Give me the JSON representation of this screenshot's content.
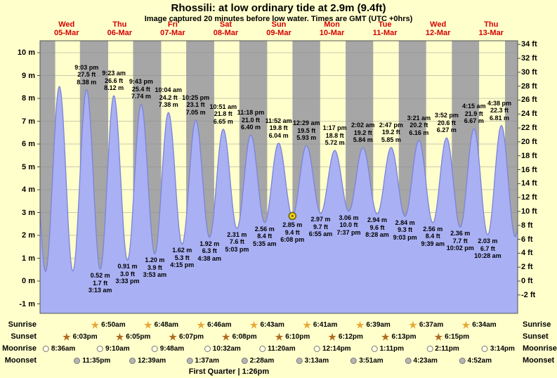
{
  "header": {
    "title": "Rhossili: at low  ordinary tide at 2.9m (9.4ft)",
    "subtitle": "Image captured 20 minutes before low water. Times are GMT (UTC +0hrs)"
  },
  "days": [
    {
      "dow": "Wed",
      "date": "05-Mar"
    },
    {
      "dow": "Thu",
      "date": "06-Mar"
    },
    {
      "dow": "Fri",
      "date": "07-Mar"
    },
    {
      "dow": "Sat",
      "date": "08-Mar"
    },
    {
      "dow": "Sun",
      "date": "09-Mar"
    },
    {
      "dow": "Mon",
      "date": "10-Mar"
    },
    {
      "dow": "Tue",
      "date": "11-Mar"
    },
    {
      "dow": "Wed",
      "date": "12-Mar"
    },
    {
      "dow": "Thu",
      "date": "13-Mar"
    }
  ],
  "y_axis": {
    "left_labels": [
      "10 m",
      "9 m",
      "8 m",
      "7 m",
      "6 m",
      "5 m",
      "4 m",
      "3 m",
      "2 m",
      "1 m",
      "0 m",
      "-1 m"
    ],
    "right_labels": [
      "34 ft",
      "32 ft",
      "30 ft",
      "28 ft",
      "26 ft",
      "24 ft",
      "22 ft",
      "20 ft",
      "18 ft",
      "16 ft",
      "14 ft",
      "12 ft",
      "10 ft",
      "8 ft",
      "6 ft",
      "4 ft",
      "2 ft",
      "0 ft",
      "-2 ft"
    ]
  },
  "chart_data": {
    "type": "area",
    "title": "Rhossili tide height curve, 05-Mar to 13-Mar",
    "x_unit": "time (GMT)",
    "y_unit_left": "m",
    "y_unit_right": "ft",
    "y_range_m": [
      -1,
      10
    ],
    "events": [
      {
        "day": 0,
        "time": "2:30 am",
        "m": 0.42,
        "kind": "low",
        "labeled": false
      },
      {
        "day": 0,
        "time": "8:45 am",
        "m": 8.52,
        "kind": "high",
        "labeled": false
      },
      {
        "day": 0,
        "time": "2:50 pm",
        "m": 0.44,
        "kind": "low",
        "labeled": false
      },
      {
        "day": 0,
        "time": "9:03 pm",
        "m": 8.38,
        "m_text": "8.38 m",
        "ft_text": "27.5 ft",
        "kind": "high",
        "labeled": true
      },
      {
        "day": 1,
        "time": "3:13 am",
        "m": 0.52,
        "m_text": "0.52 m",
        "ft_text": "1.7 ft",
        "kind": "low",
        "labeled": true
      },
      {
        "day": 1,
        "time": "9:23 am",
        "m": 8.12,
        "m_text": "8.12 m",
        "ft_text": "26.6 ft",
        "kind": "high",
        "labeled": true
      },
      {
        "day": 1,
        "time": "3:33 pm",
        "m": 0.91,
        "m_text": "0.91 m",
        "ft_text": "3.0 ft",
        "kind": "low",
        "labeled": true
      },
      {
        "day": 1,
        "time": "9:43 pm",
        "m": 7.74,
        "m_text": "7.74 m",
        "ft_text": "25.4 ft",
        "kind": "high",
        "labeled": true
      },
      {
        "day": 2,
        "time": "3:53 am",
        "m": 1.2,
        "m_text": "1.20 m",
        "ft_text": "3.9 ft",
        "kind": "low",
        "labeled": true
      },
      {
        "day": 2,
        "time": "10:04 am",
        "m": 7.38,
        "m_text": "7.38 m",
        "ft_text": "24.2 ft",
        "kind": "high",
        "labeled": true
      },
      {
        "day": 2,
        "time": "4:15 pm",
        "m": 1.62,
        "m_text": "1.62 m",
        "ft_text": "5.3 ft",
        "kind": "low",
        "labeled": true
      },
      {
        "day": 2,
        "time": "10:25 pm",
        "m": 7.05,
        "m_text": "7.05 m",
        "ft_text": "23.1 ft",
        "kind": "high",
        "labeled": true
      },
      {
        "day": 3,
        "time": "4:38 am",
        "m": 1.92,
        "m_text": "1.92 m",
        "ft_text": "6.3 ft",
        "kind": "low",
        "labeled": true
      },
      {
        "day": 3,
        "time": "10:51 am",
        "m": 6.65,
        "m_text": "6.65 m",
        "ft_text": "21.8 ft",
        "kind": "high",
        "labeled": true
      },
      {
        "day": 3,
        "time": "5:03 pm",
        "m": 2.31,
        "m_text": "2.31 m",
        "ft_text": "7.6 ft",
        "kind": "low",
        "labeled": true
      },
      {
        "day": 3,
        "time": "11:18 pm",
        "m": 6.4,
        "m_text": "6.40 m",
        "ft_text": "21.0 ft",
        "kind": "high",
        "labeled": true
      },
      {
        "day": 4,
        "time": "5:35 am",
        "m": 2.56,
        "m_text": "2.56 m",
        "ft_text": "8.4 ft",
        "kind": "low",
        "labeled": true
      },
      {
        "day": 4,
        "time": "11:52 am",
        "m": 6.04,
        "m_text": "6.04 m",
        "ft_text": "19.8 ft",
        "kind": "high",
        "labeled": true
      },
      {
        "day": 4,
        "time": "6:08 pm",
        "m": 2.85,
        "m_text": "2.85 m",
        "ft_text": "9.4 ft",
        "kind": "low",
        "labeled": true,
        "marker": true
      },
      {
        "day": 5,
        "time": "12:29 am",
        "m": 5.93,
        "m_text": "5.93 m",
        "ft_text": "19.5 ft",
        "kind": "high",
        "labeled": true
      },
      {
        "day": 5,
        "time": "6:55 am",
        "m": 2.97,
        "m_text": "2.97 m",
        "ft_text": "9.7 ft",
        "kind": "low",
        "labeled": true
      },
      {
        "day": 5,
        "time": "1:17 pm",
        "m": 5.72,
        "m_text": "5.72 m",
        "ft_text": "18.8 ft",
        "kind": "high",
        "labeled": true
      },
      {
        "day": 5,
        "time": "7:37 pm",
        "m": 3.06,
        "m_text": "3.06 m",
        "ft_text": "10.0 ft",
        "kind": "low",
        "labeled": true
      },
      {
        "day": 6,
        "time": "2:02 am",
        "m": 5.84,
        "m_text": "5.84 m",
        "ft_text": "19.2 ft",
        "kind": "high",
        "labeled": true
      },
      {
        "day": 6,
        "time": "8:28 am",
        "m": 2.94,
        "m_text": "2.94 m",
        "ft_text": "9.6 ft",
        "kind": "low",
        "labeled": true
      },
      {
        "day": 6,
        "time": "2:47 pm",
        "m": 5.85,
        "m_text": "5.85 m",
        "ft_text": "19.2 ft",
        "kind": "high",
        "labeled": true
      },
      {
        "day": 6,
        "time": "9:03 pm",
        "m": 2.84,
        "m_text": "2.84 m",
        "ft_text": "9.3 ft",
        "kind": "low",
        "labeled": true
      },
      {
        "day": 7,
        "time": "3:21 am",
        "m": 6.16,
        "m_text": "6.16 m",
        "ft_text": "20.2 ft",
        "kind": "high",
        "labeled": true
      },
      {
        "day": 7,
        "time": "9:39 am",
        "m": 2.56,
        "m_text": "2.56 m",
        "ft_text": "8.4 ft",
        "kind": "low",
        "labeled": true
      },
      {
        "day": 7,
        "time": "3:52 pm",
        "m": 6.27,
        "m_text": "6.27 m",
        "ft_text": "20.6 ft",
        "kind": "high",
        "labeled": true
      },
      {
        "day": 7,
        "time": "10:02 pm",
        "m": 2.36,
        "m_text": "2.36 m",
        "ft_text": "7.7 ft",
        "kind": "low",
        "labeled": true
      },
      {
        "day": 8,
        "time": "4:15 am",
        "m": 6.67,
        "m_text": "6.67 m",
        "ft_text": "21.9 ft",
        "kind": "high",
        "labeled": true
      },
      {
        "day": 8,
        "time": "10:28 am",
        "m": 2.03,
        "m_text": "2.03 m",
        "ft_text": "6.7 ft",
        "kind": "low",
        "labeled": true
      },
      {
        "day": 8,
        "time": "4:38 pm",
        "m": 6.81,
        "m_text": "6.81 m",
        "ft_text": "22.3 ft",
        "kind": "high",
        "labeled": true
      },
      {
        "day": 8,
        "time": "10:55 pm",
        "m": 1.95,
        "kind": "low",
        "labeled": false
      }
    ]
  },
  "astro": {
    "row_labels": [
      "Sunrise",
      "Sunset",
      "Moonrise",
      "Moonset"
    ],
    "sunrise": [
      {
        "day": 1,
        "time": "6:50am"
      },
      {
        "day": 2,
        "time": "6:48am"
      },
      {
        "day": 3,
        "time": "6:46am"
      },
      {
        "day": 4,
        "time": "6:43am"
      },
      {
        "day": 5,
        "time": "6:41am"
      },
      {
        "day": 6,
        "time": "6:39am"
      },
      {
        "day": 7,
        "time": "6:37am"
      },
      {
        "day": 8,
        "time": "6:34am"
      }
    ],
    "sunset": [
      {
        "day": 0,
        "time": "6:03pm"
      },
      {
        "day": 1,
        "time": "6:05pm"
      },
      {
        "day": 2,
        "time": "6:07pm"
      },
      {
        "day": 3,
        "time": "6:08pm"
      },
      {
        "day": 4,
        "time": "6:10pm"
      },
      {
        "day": 5,
        "time": "6:12pm"
      },
      {
        "day": 6,
        "time": "6:13pm"
      },
      {
        "day": 7,
        "time": "6:15pm"
      }
    ],
    "moonrise": [
      {
        "day": 0,
        "time": "8:36am"
      },
      {
        "day": 1,
        "time": "9:10am"
      },
      {
        "day": 2,
        "time": "9:48am"
      },
      {
        "day": 3,
        "time": "10:32am"
      },
      {
        "day": 4,
        "time": "11:20am"
      },
      {
        "day": 5,
        "time": "12:14pm"
      },
      {
        "day": 6,
        "time": "1:11pm"
      },
      {
        "day": 7,
        "time": "2:11pm"
      },
      {
        "day": 8,
        "time": "3:14pm"
      }
    ],
    "moonset": [
      {
        "day": 0,
        "time": "11:35pm"
      },
      {
        "day": 2,
        "time": "12:39am"
      },
      {
        "day": 3,
        "time": "1:37am"
      },
      {
        "day": 4,
        "time": "2:28am"
      },
      {
        "day": 5,
        "time": "3:13am"
      },
      {
        "day": 6,
        "time": "3:51am"
      },
      {
        "day": 7,
        "time": "4:23am"
      },
      {
        "day": 8,
        "time": "4:52am"
      }
    ]
  },
  "footer": {
    "moon_phase": "First Quarter",
    "time": "1:26pm",
    "display": "First Quarter | 1:26pm",
    "day": 3
  },
  "colors": {
    "background": "#ffffcc",
    "night_band": "#a6a6a6",
    "day_band": "#ffffcc",
    "tide_fill": "#a9b0f3",
    "tide_stroke": "#7b83d9",
    "grid_line": "#8a8a8a",
    "plot_border": "#555555",
    "day_label": "#d40000",
    "marker_fill": "#ffd700",
    "marker_stroke": "#6b6b2a",
    "sunrise_icon": "#e8a837",
    "sunset_icon": "#b06a20",
    "moonrise_icon": "#ffffe6",
    "moonset_icon": "#b5b5b5"
  }
}
